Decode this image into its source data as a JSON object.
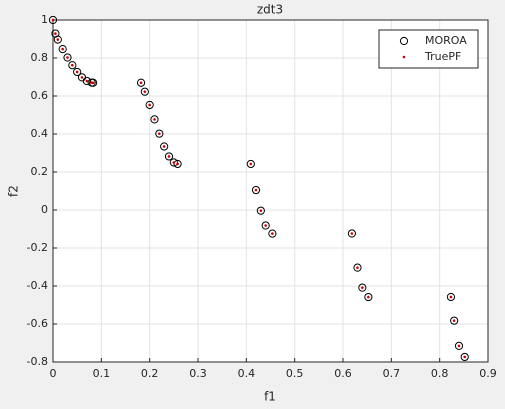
{
  "chart_data": {
    "type": "scatter",
    "title": "zdt3",
    "x_label": "f1",
    "y_label": "f2",
    "xlim": [
      0,
      0.9
    ],
    "xticks": [
      0,
      0.1,
      0.2,
      0.3,
      0.4,
      0.5,
      0.6,
      0.7,
      0.8,
      0.9
    ],
    "ylim": [
      -0.8,
      1
    ],
    "yticks": [
      -0.8,
      -0.6,
      -0.4,
      -0.2,
      0,
      0.2,
      0.4,
      0.6,
      0.8,
      1
    ],
    "grid": true,
    "legend": "top-right",
    "series": [
      {
        "name": "MOROA",
        "color": "#000000",
        "marker": "circle",
        "x": [
          0,
          0.005,
          0.01,
          0.02,
          0.03,
          0.04,
          0.05,
          0.06,
          0.07,
          0.08,
          0.083,
          0.1822,
          0.19,
          0.2,
          0.21,
          0.22,
          0.23,
          0.24,
          0.25,
          0.2578,
          0.4093,
          0.42,
          0.43,
          0.44,
          0.4539,
          0.6184,
          0.63,
          0.64,
          0.6525,
          0.8233,
          0.83,
          0.84,
          0.8518
        ],
        "values": [
          1,
          0.9285,
          0.8969,
          0.8468,
          0.8025,
          0.762,
          0.7264,
          0.698,
          0.6788,
          0.6702,
          0.6696,
          0.6698,
          0.6228,
          0.5528,
          0.4768,
          0.4017,
          0.3343,
          0.2819,
          0.25,
          0.2422,
          0.2425,
          0.105,
          -0.0036,
          -0.0817,
          -0.1242,
          -0.1238,
          -0.3034,
          -0.4087,
          -0.4583,
          -0.4578,
          -0.5825,
          -0.7153,
          -0.7733
        ]
      },
      {
        "name": "TruePF",
        "color": "#d40000",
        "marker": "dot",
        "x": [
          0,
          0.005,
          0.01,
          0.02,
          0.03,
          0.04,
          0.05,
          0.06,
          0.07,
          0.08,
          0.083,
          0.1822,
          0.19,
          0.2,
          0.21,
          0.22,
          0.23,
          0.24,
          0.25,
          0.2578,
          0.4093,
          0.42,
          0.43,
          0.44,
          0.4539,
          0.6184,
          0.63,
          0.64,
          0.6525,
          0.8233,
          0.83,
          0.84,
          0.8518
        ],
        "values": [
          1,
          0.9285,
          0.8969,
          0.8468,
          0.8025,
          0.762,
          0.7264,
          0.698,
          0.6788,
          0.6702,
          0.6696,
          0.6698,
          0.6228,
          0.5528,
          0.4768,
          0.4017,
          0.3343,
          0.2819,
          0.25,
          0.2422,
          0.2425,
          0.105,
          -0.0036,
          -0.0817,
          -0.1242,
          -0.1238,
          -0.3034,
          -0.4087,
          -0.4583,
          -0.4578,
          -0.5825,
          -0.7153,
          -0.7733
        ]
      }
    ]
  }
}
